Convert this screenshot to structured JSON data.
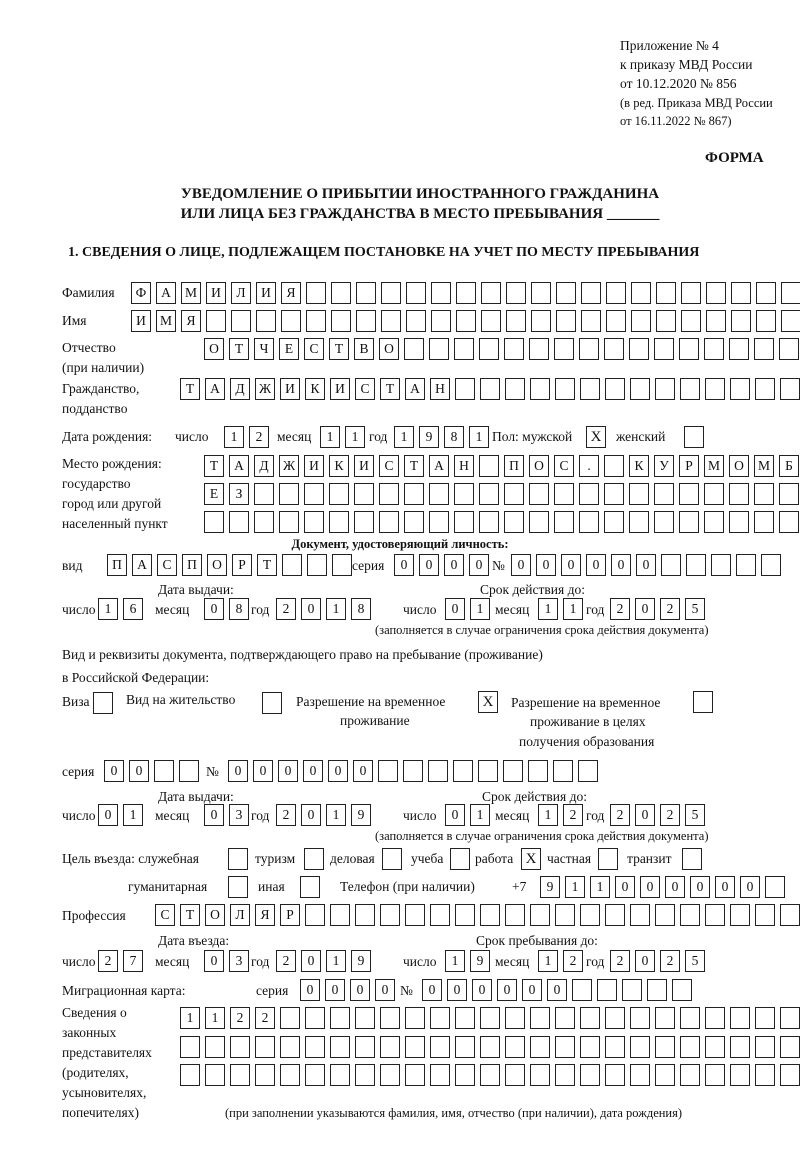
{
  "header": {
    "line1": "Приложение № 4",
    "line2": "к приказу МВД России",
    "line3": "от 10.12.2020 № 856",
    "line4": "(в ред. Приказа МВД России",
    "line5": "от 16.11.2022 № 867)",
    "forma": "ФОРМА"
  },
  "title": {
    "line1": "УВЕДОМЛЕНИЕ О ПРИБЫТИИ ИНОСТРАННОГО ГРАЖДАНИНА",
    "line2": "ИЛИ ЛИЦА БЕЗ ГРАЖДАНСТВА В МЕСТО ПРЕБЫВАНИЯ _______"
  },
  "section1": "1. СВЕДЕНИЯ О ЛИЦЕ, ПОДЛЕЖАЩЕМ ПОСТАНОВКЕ НА УЧЕТ ПО МЕСТУ ПРЕБЫВАНИЯ",
  "labels": {
    "surname": "Фамилия",
    "name": "Имя",
    "patronymic": "Отчество",
    "patronymic2": "(при наличии)",
    "citizenship": "Гражданство,",
    "citizenship2": "подданство",
    "birth_date": "Дата рождения:",
    "day": "число",
    "month": "месяц",
    "year": "год",
    "sex": "Пол: мужской",
    "female": "женский",
    "birthplace1": "Место рождения:",
    "birthplace2": "государство",
    "birthplace3": "город или другой",
    "birthplace4": "населенный пункт",
    "id_doc": "Документ, удостоверяющий личность:",
    "kind": "вид",
    "series": "серия",
    "number": "№",
    "issue_date": "Дата выдачи:",
    "valid_until": "Срок действия до:",
    "validity_note": "(заполняется в случае ограничения срока действия документа)",
    "right_doc1": "Вид и реквизиты документа, подтверждающего право на пребывание (проживание)",
    "right_doc2": "в Российской Федерации:",
    "visa": "Виза",
    "residence": "Вид на жительство",
    "trp1": "Разрешение на временное",
    "trp2": "проживание",
    "trpe1": "Разрешение на временное",
    "trpe2": "проживание в целях",
    "trpe3": "получения образования",
    "purpose": "Цель въезда: служебная",
    "tourism": "туризм",
    "business": "деловая",
    "study": "учеба",
    "work": "работа",
    "private": "частная",
    "transit": "транзит",
    "humanitarian": "гуманитарная",
    "other": "иная",
    "phone": "Телефон (при наличии)",
    "phone_prefix": "+7",
    "profession": "Профессия",
    "entry_date": "Дата въезда:",
    "stay_until": "Срок пребывания до:",
    "migration_card": "Миграционная карта:",
    "reps1": "Сведения о",
    "reps2": "законных",
    "reps3": "представителях",
    "reps4": "(родителях,",
    "reps5": "усыновителях,",
    "reps6": "попечителях)",
    "reps_note": "(при заполнении указываются фамилия, имя, отчество (при наличии), дата рождения)"
  },
  "fields": {
    "surname": [
      "Ф",
      "А",
      "М",
      "И",
      "Л",
      "И",
      "Я"
    ],
    "name": [
      "И",
      "М",
      "Я"
    ],
    "patronymic": [
      "О",
      "Т",
      "Ч",
      "Е",
      "С",
      "Т",
      "В",
      "О"
    ],
    "citizenship": [
      "Т",
      "А",
      "Д",
      "Ж",
      "И",
      "К",
      "И",
      "С",
      "Т",
      "А",
      "Н"
    ],
    "birth_day": [
      "1",
      "2"
    ],
    "birth_month": [
      "1",
      "1"
    ],
    "birth_year": [
      "1",
      "9",
      "8",
      "1"
    ],
    "sex_male": "X",
    "sex_female": "",
    "birthplace1": [
      "Т",
      "А",
      "Д",
      "Ж",
      "И",
      "К",
      "И",
      "С",
      "Т",
      "А",
      "Н",
      "",
      "П",
      "О",
      "С",
      ".",
      "",
      "К",
      "У",
      "Р",
      "М",
      "О",
      "М",
      "Б"
    ],
    "birthplace2": [
      "Е",
      "З"
    ],
    "birthplace3": [],
    "id_kind": [
      "П",
      "А",
      "С",
      "П",
      "О",
      "Р",
      "Т"
    ],
    "id_series": [
      "0",
      "0",
      "0",
      "0"
    ],
    "id_number": [
      "0",
      "0",
      "0",
      "0",
      "0",
      "0"
    ],
    "id_issue_day": [
      "1",
      "6"
    ],
    "id_issue_month": [
      "0",
      "8"
    ],
    "id_issue_year": [
      "2",
      "0",
      "1",
      "8"
    ],
    "id_valid_day": [
      "0",
      "1"
    ],
    "id_valid_month": [
      "1",
      "1"
    ],
    "id_valid_year": [
      "2",
      "0",
      "2",
      "5"
    ],
    "visa": "",
    "residence": "",
    "trp": "X",
    "trpe": "",
    "rd_series": [
      "0",
      "0"
    ],
    "rd_number": [
      "0",
      "0",
      "0",
      "0",
      "0",
      "0"
    ],
    "rd_issue_day": [
      "0",
      "1"
    ],
    "rd_issue_month": [
      "0",
      "3"
    ],
    "rd_issue_year": [
      "2",
      "0",
      "1",
      "9"
    ],
    "rd_valid_day": [
      "0",
      "1"
    ],
    "rd_valid_month": [
      "1",
      "2"
    ],
    "rd_valid_year": [
      "2",
      "0",
      "2",
      "5"
    ],
    "purpose_service": "",
    "purpose_tourism": "",
    "purpose_business": "",
    "purpose_study": "",
    "purpose_work": "X",
    "purpose_private": "",
    "purpose_transit": "",
    "purpose_humanitarian": "",
    "purpose_other": "",
    "phone": [
      "9",
      "1",
      "1",
      "0",
      "0",
      "0",
      "0",
      "0",
      "0"
    ],
    "profession": [
      "С",
      "Т",
      "О",
      "Л",
      "Я",
      "Р"
    ],
    "entry_day": [
      "2",
      "7"
    ],
    "entry_month": [
      "0",
      "3"
    ],
    "entry_year": [
      "2",
      "0",
      "1",
      "9"
    ],
    "stay_day": [
      "1",
      "9"
    ],
    "stay_month": [
      "1",
      "2"
    ],
    "stay_year": [
      "2",
      "0",
      "2",
      "5"
    ],
    "mc_series": [
      "0",
      "0",
      "0",
      "0"
    ],
    "mc_number": [
      "0",
      "0",
      "0",
      "0",
      "0",
      "0"
    ],
    "reps1": [
      "1",
      "1",
      "2",
      "2"
    ],
    "reps2": [],
    "reps3": []
  }
}
